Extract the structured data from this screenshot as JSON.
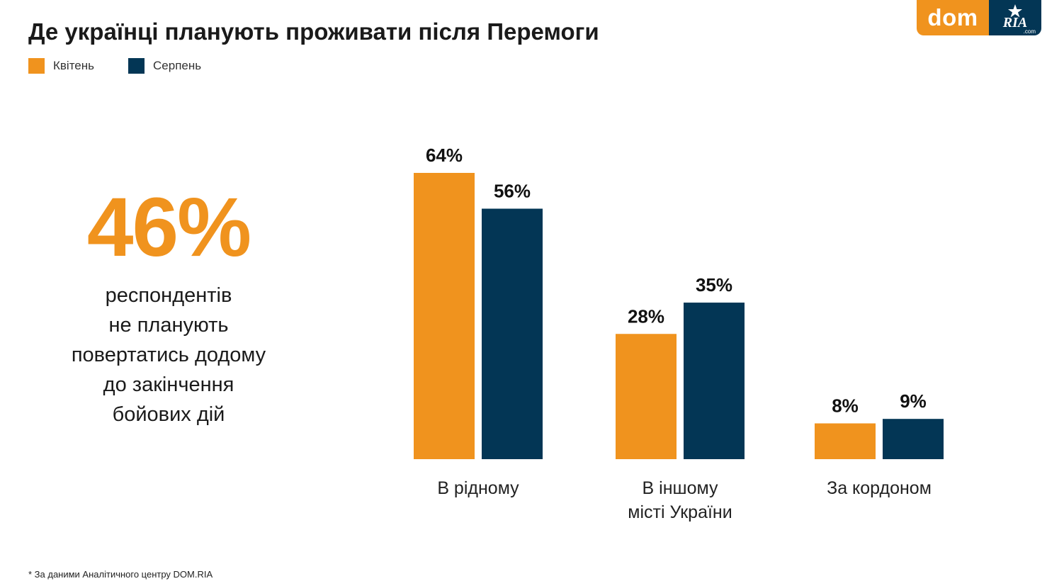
{
  "header": {
    "title": "Де українці планують проживати після Перемоги"
  },
  "legend": [
    {
      "label": "Квітень",
      "color": "#f0931e"
    },
    {
      "label": "Серпень",
      "color": "#033655"
    }
  ],
  "logo": {
    "dom_text": "dom",
    "ria_text": "RIA",
    "ria_sub": ".com"
  },
  "highlight": {
    "value": "46%",
    "caption_lines": [
      "респондентів",
      "не планують",
      "повертатись додому",
      "до закінчення",
      "бойових дій"
    ]
  },
  "footnote": "* За даними Аналітичного центру DOM.RIA",
  "chart_data": {
    "type": "bar",
    "title": "",
    "xlabel": "",
    "ylabel": "",
    "ylim": [
      0,
      64
    ],
    "grid": false,
    "legend_position": "top-left",
    "categories": [
      [
        "В рідному"
      ],
      [
        "В іншому",
        "місті України"
      ],
      [
        "За кордоном"
      ]
    ],
    "series": [
      {
        "name": "Квітень",
        "color": "#f0931e",
        "values": [
          64,
          28,
          8
        ],
        "labels": [
          "64%",
          "28%",
          "8%"
        ]
      },
      {
        "name": "Серпень",
        "color": "#033655",
        "values": [
          56,
          35,
          9
        ],
        "labels": [
          "56%",
          "35%",
          "9%"
        ]
      }
    ]
  }
}
